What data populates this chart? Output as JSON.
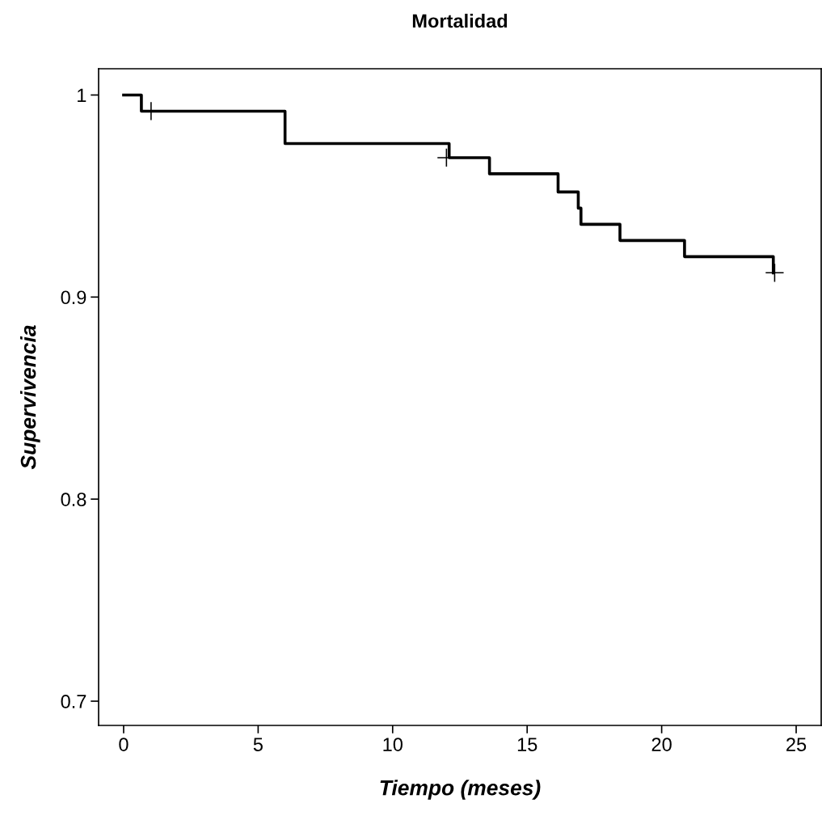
{
  "chart_data": {
    "type": "step",
    "title": "Mortalidad",
    "xlabel": "Tiempo (meses)",
    "ylabel": "Supervivencia",
    "xlim": [
      -0.93,
      25.93
    ],
    "ylim": [
      0.688,
      1.013
    ],
    "xticks": [
      0,
      5,
      10,
      15,
      20,
      25
    ],
    "yticks": [
      {
        "value": 0.7,
        "label": "0.7"
      },
      {
        "value": 0.8,
        "label": "0.8"
      },
      {
        "value": 0.9,
        "label": "0.9"
      },
      {
        "value": 1,
        "label": "1"
      }
    ],
    "grid": false,
    "legend": false,
    "series": [
      {
        "color": "#000000",
        "marker": "none",
        "x": [
          0,
          0.66,
          6,
          12.1,
          13.6,
          16.15,
          16.9,
          17.0,
          18.45,
          20.85,
          24.15
        ],
        "values": [
          1,
          0.992,
          0.976,
          0.969,
          0.961,
          0.952,
          0.944,
          0.936,
          0.928,
          0.92,
          0.912
        ]
      },
      {
        "type": "scatter",
        "color": "#000000",
        "marker": "cross",
        "x": [
          1.02,
          12.0,
          24.2
        ],
        "values": [
          0.992,
          0.969,
          0.912
        ]
      }
    ]
  }
}
